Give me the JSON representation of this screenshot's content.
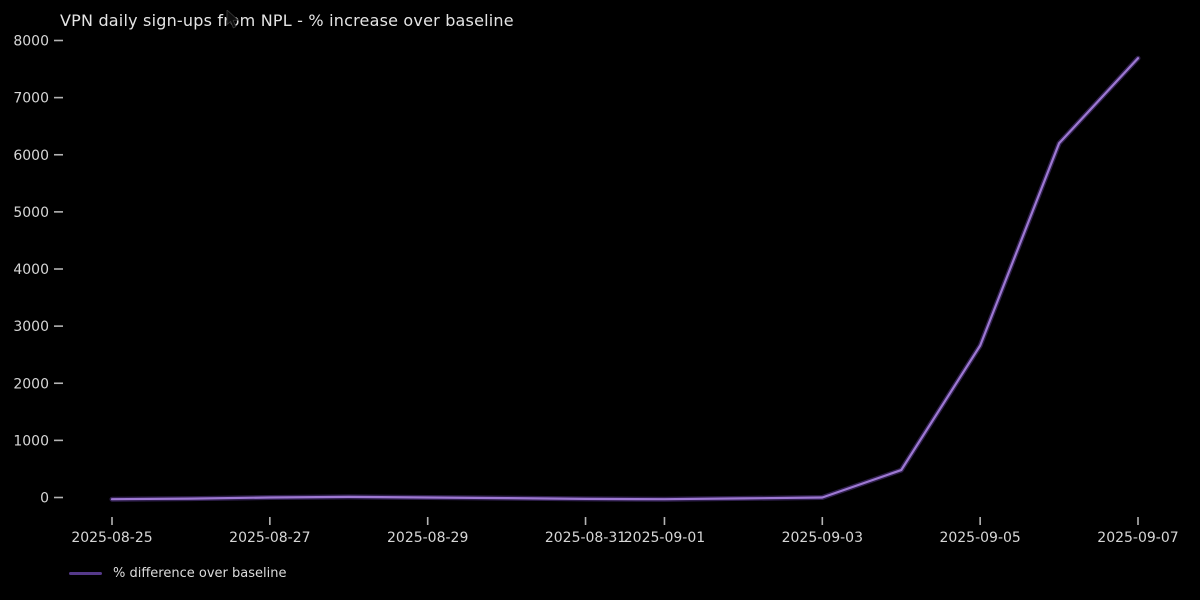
{
  "title": "VPN daily sign-ups from NPL - % increase over baseline",
  "legend": {
    "label": "% difference over baseline"
  },
  "colors": {
    "background": "#000000",
    "line": "#9d78d2",
    "line_glow": "#55398a",
    "tick_mark": "#b5b5b5",
    "tick_label": "#d6d6d6",
    "title_text": "#e4e4e4",
    "legend_text": "#dcdcdc"
  },
  "icons": {
    "mouse_cursor": "arrow-pointer"
  },
  "chart_data": {
    "type": "line",
    "title": "VPN daily sign-ups from NPL - % increase over baseline",
    "xlabel": "",
    "ylabel": "",
    "x": [
      "2025-08-25",
      "2025-08-26",
      "2025-08-27",
      "2025-08-28",
      "2025-08-29",
      "2025-08-30",
      "2025-08-31",
      "2025-09-01",
      "2025-09-02",
      "2025-09-03",
      "2025-09-04",
      "2025-09-05",
      "2025-09-06",
      "2025-09-07"
    ],
    "series": [
      {
        "name": "% difference over baseline",
        "color": "#9d78d2",
        "values": [
          -30,
          -20,
          0,
          10,
          0,
          -10,
          -25,
          -30,
          -15,
          0,
          480,
          2660,
          6200,
          7690
        ]
      }
    ],
    "xticks": [
      "2025-08-25",
      "2025-08-27",
      "2025-08-29",
      "2025-08-31",
      "2025-09-01",
      "2025-09-03",
      "2025-09-05",
      "2025-09-07"
    ],
    "yticks": [
      0,
      1000,
      2000,
      3000,
      4000,
      5000,
      6000,
      7000,
      8000
    ],
    "ylim": [
      -350,
      8100
    ],
    "grid": false,
    "legend_position": "lower-left-outside"
  }
}
